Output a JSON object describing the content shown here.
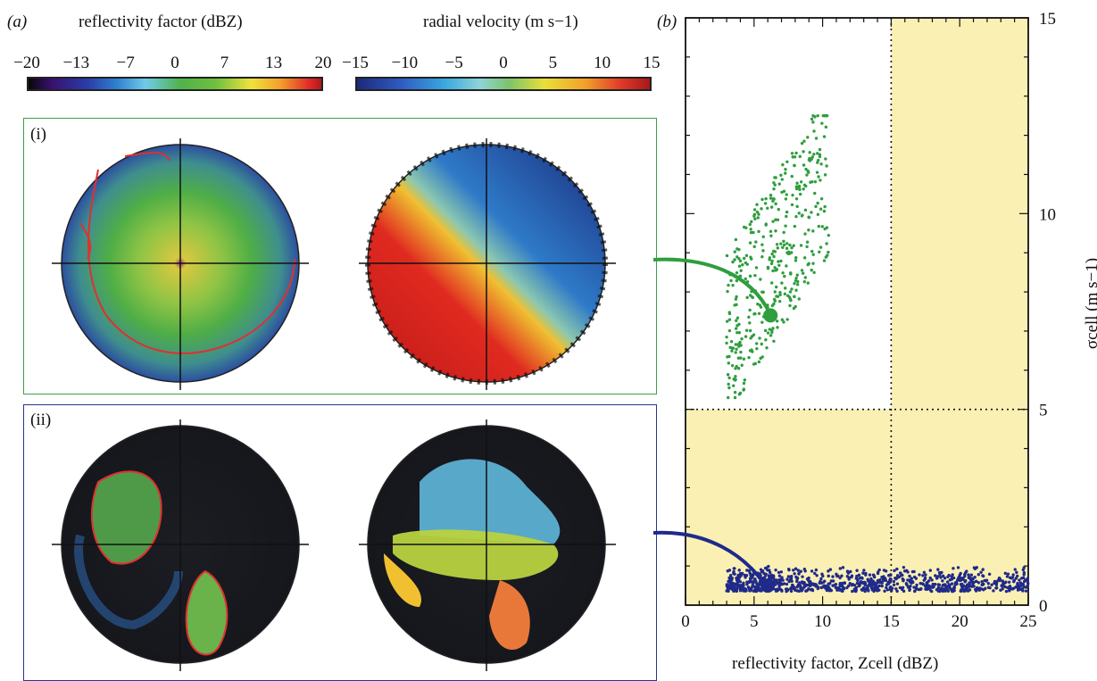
{
  "panel_a": {
    "label": "(a)",
    "colorbar_reflectivity": {
      "title": "reflectivity factor (dBZ)",
      "ticks": [
        "−20",
        "−13",
        "−7",
        "0",
        "7",
        "13",
        "20"
      ]
    },
    "colorbar_velocity": {
      "title": "radial velocity (m s−1)",
      "ticks": [
        "−15",
        "−10",
        "−5",
        "0",
        "5",
        "10",
        "15"
      ]
    },
    "subpanel_i": {
      "label": "(i)"
    },
    "subpanel_ii": {
      "label": "(ii)"
    }
  },
  "chart_data": {
    "type": "scatter",
    "panel_label": "(b)",
    "xlabel": "reflectivity factor, Zcell (dBZ)",
    "ylabel": "σcell (m s−1)",
    "xlim": [
      0,
      25
    ],
    "ylim": [
      0,
      15
    ],
    "x_ticks": [
      0,
      5,
      10,
      15,
      20,
      25
    ],
    "y_ticks": [
      0,
      5,
      10,
      15
    ],
    "threshold_x": 15,
    "threshold_y": 5,
    "shaded_color": "#fbf0b4",
    "series": [
      {
        "color": "#2e9e3e",
        "x_range": [
          3,
          10.5
        ],
        "y_range": [
          5.3,
          12.5
        ],
        "highlight": [
          6.2,
          7.4
        ]
      },
      {
        "color": "#1f2a8a",
        "x_range": [
          3,
          25
        ],
        "y_range": [
          0.2,
          1.2
        ],
        "highlight": [
          6,
          0.5
        ]
      }
    ]
  }
}
